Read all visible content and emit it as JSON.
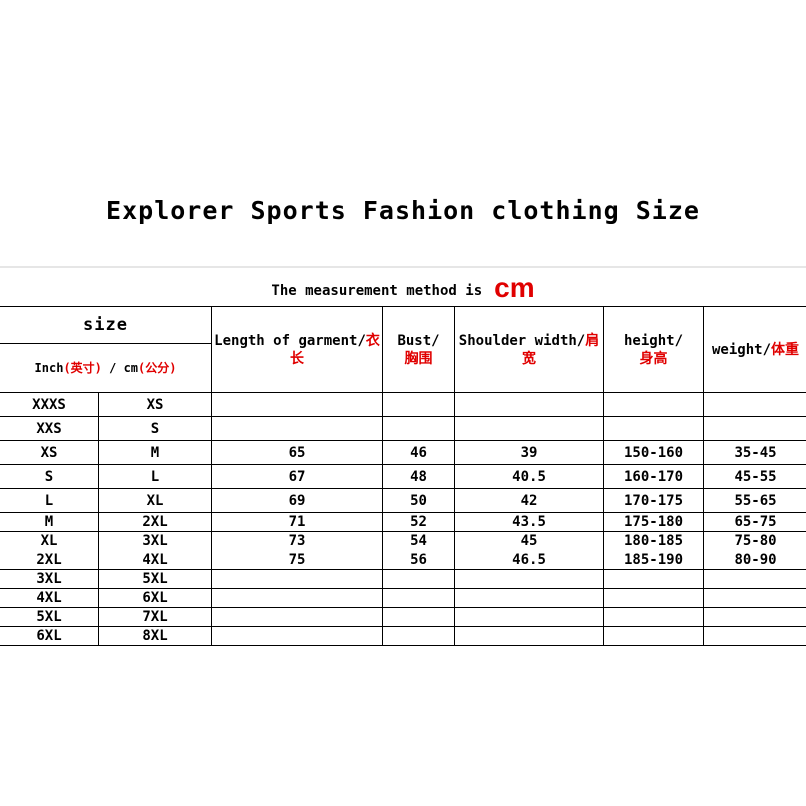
{
  "title": "Explorer Sports Fashion clothing Size",
  "measurement": {
    "text": "The measurement method is",
    "unit": "cm"
  },
  "header": {
    "size": "size",
    "inch": "Inch",
    "inch_cn": "(英寸)",
    "sep": " / cm",
    "cm_cn": "(公分)",
    "length": "Length of garment/",
    "length_cn": "衣长",
    "bust": "Bust/",
    "bust_cn": "胸围",
    "shoulder": "Shoulder width/",
    "shoulder_cn": "肩宽",
    "height": "height/",
    "height_cn": "身高",
    "weight": "weight/",
    "weight_cn": "体重"
  },
  "rows": [
    {
      "inch": "XXXS",
      "cm": "XS",
      "length": "",
      "bust": "",
      "shoulder": "",
      "height": "",
      "weight": ""
    },
    {
      "inch": "XXS",
      "cm": "S",
      "length": "",
      "bust": "",
      "shoulder": "",
      "height": "",
      "weight": ""
    },
    {
      "inch": "XS",
      "cm": "M",
      "length": "65",
      "bust": "46",
      "shoulder": "39",
      "height": "150-160",
      "weight": "35-45"
    },
    {
      "inch": "S",
      "cm": "L",
      "length": "67",
      "bust": "48",
      "shoulder": "40.5",
      "height": "160-170",
      "weight": "45-55"
    },
    {
      "inch": "L",
      "cm": "XL",
      "length": "69",
      "bust": "50",
      "shoulder": "42",
      "height": "170-175",
      "weight": "55-65"
    },
    {
      "inch": "M",
      "cm": "2XL",
      "length": "71",
      "bust": "52",
      "shoulder": "43.5",
      "height": "175-180",
      "weight": "65-75"
    },
    {
      "inch": "XL",
      "cm": "3XL",
      "length": "73",
      "bust": "54",
      "shoulder": "45",
      "height": "180-185",
      "weight": "75-80"
    },
    {
      "inch": "2XL",
      "cm": "4XL",
      "length": "75",
      "bust": "56",
      "shoulder": "46.5",
      "height": "185-190",
      "weight": "80-90"
    },
    {
      "inch": "3XL",
      "cm": "5XL",
      "length": "",
      "bust": "",
      "shoulder": "",
      "height": "",
      "weight": ""
    },
    {
      "inch": "4XL",
      "cm": "6XL",
      "length": "",
      "bust": "",
      "shoulder": "",
      "height": "",
      "weight": ""
    },
    {
      "inch": "5XL",
      "cm": "7XL",
      "length": "",
      "bust": "",
      "shoulder": "",
      "height": "",
      "weight": ""
    },
    {
      "inch": "6XL",
      "cm": "8XL",
      "length": "",
      "bust": "",
      "shoulder": "",
      "height": "",
      "weight": ""
    }
  ],
  "colors": {
    "accent": "#e00000",
    "text": "#000000"
  }
}
